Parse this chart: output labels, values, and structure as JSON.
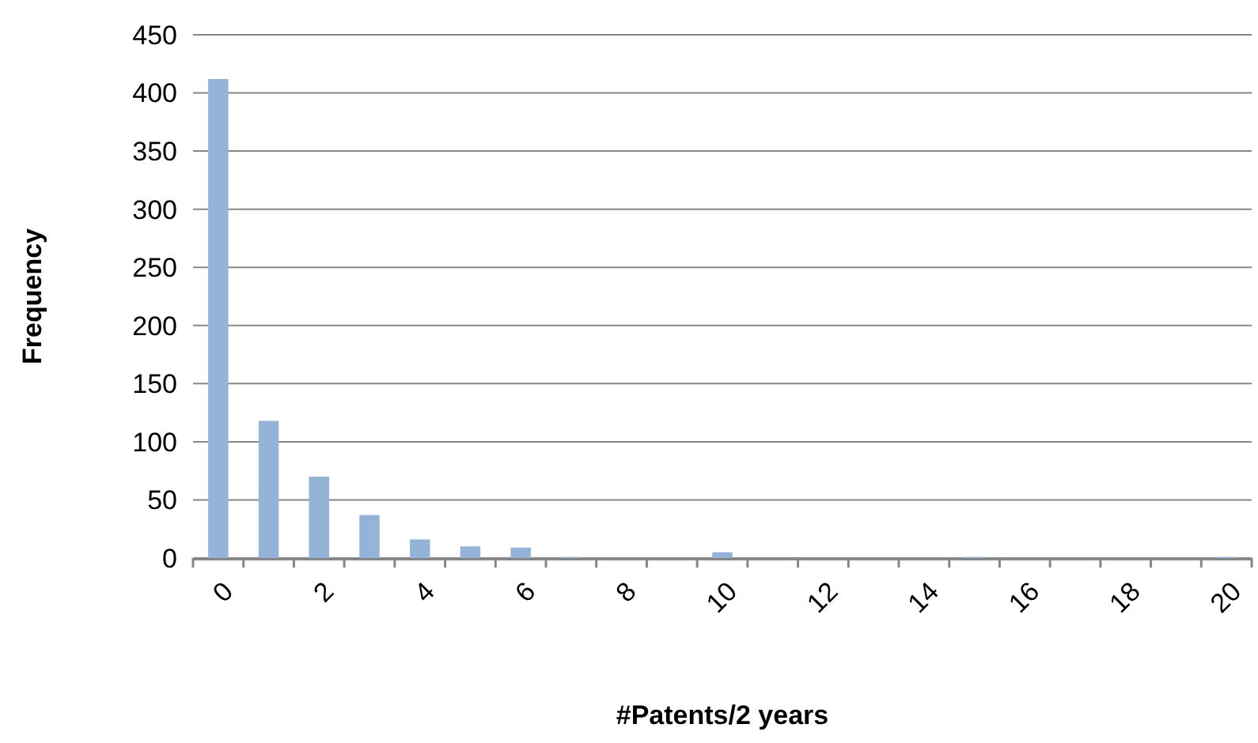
{
  "chart_data": {
    "type": "bar",
    "xlabel": "#Patents/2 years",
    "ylabel": "Frequency",
    "categories": [
      "0",
      null,
      "2",
      null,
      "4",
      null,
      "6",
      null,
      "8",
      null,
      "10",
      null,
      "12",
      null,
      "14",
      null,
      "16",
      null,
      "18",
      null,
      "20"
    ],
    "values": [
      412,
      118,
      70,
      37,
      16,
      10,
      9,
      1,
      0,
      0,
      5,
      0,
      0,
      0,
      0,
      1,
      0,
      0,
      0,
      0,
      1
    ],
    "color": "#95b3d7",
    "ylim": [
      0,
      450
    ],
    "yticks": [
      0,
      50,
      100,
      150,
      200,
      250,
      300,
      350,
      400,
      450
    ],
    "grid": "y"
  }
}
